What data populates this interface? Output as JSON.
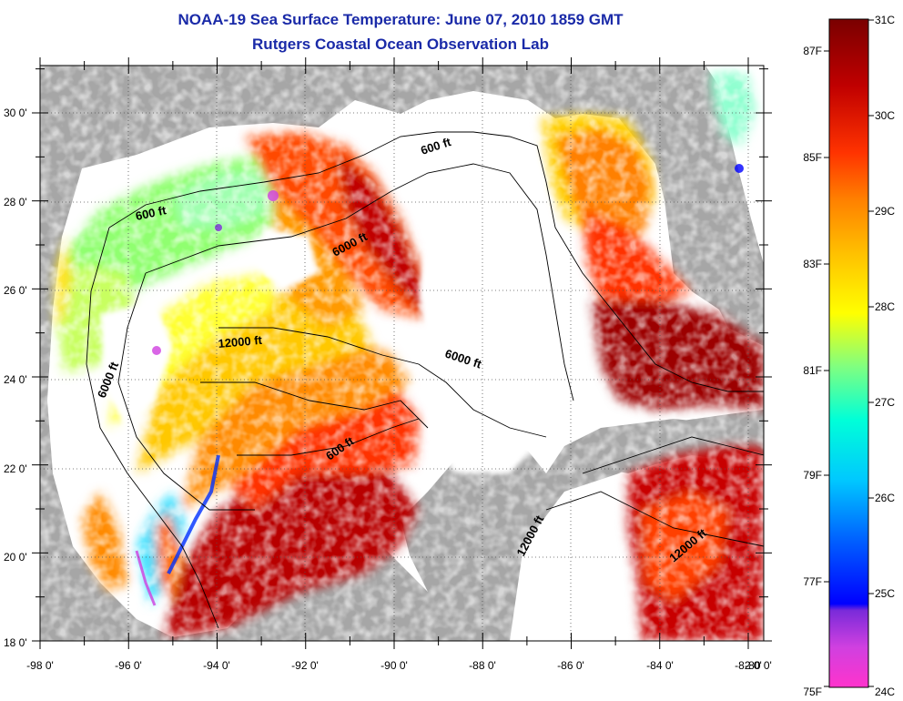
{
  "header": {
    "title": "NOAA-19 Sea Surface Temperature:  June 07, 2010 1859 GMT",
    "subtitle": "Rutgers Coastal Ocean Observation Lab"
  },
  "map": {
    "lon_labels": [
      "-98 0'",
      "-96 0'",
      "-94 0'",
      "-92 0'",
      "-90 0'",
      "-88 0'",
      "-86 0'",
      "-84 0'",
      "-82 0'",
      "-80 0'"
    ],
    "lat_labels": [
      "30 0'",
      "28 0'",
      "26 0'",
      "24 0'",
      "22 0'",
      "20 0'",
      "18 0'"
    ],
    "contour_labels": [
      "600 ft",
      "600 ft",
      "6000 ft",
      "12000 ft",
      "6000 ft",
      "6000 ft",
      "600 ft",
      "12000 ft",
      "12000 ft"
    ],
    "colors": {
      "land": "#a6a6a6",
      "no_data": "#ffffff",
      "grid": "#555555"
    }
  },
  "colorbar": {
    "celsius_labels": [
      "31C",
      "30C",
      "29C",
      "28C",
      "27C",
      "26C",
      "25C",
      "24C"
    ],
    "fahrenheit_labels": [
      "87F",
      "85F",
      "83F",
      "81F",
      "79F",
      "77F",
      "75F"
    ],
    "colors": [
      "#ff33cc",
      "#7a2bd9",
      "#0000ff",
      "#00b4ff",
      "#00ffd8",
      "#80ff80",
      "#ffff00",
      "#ff9f00",
      "#ff3300",
      "#c00000",
      "#7a0000"
    ]
  }
}
